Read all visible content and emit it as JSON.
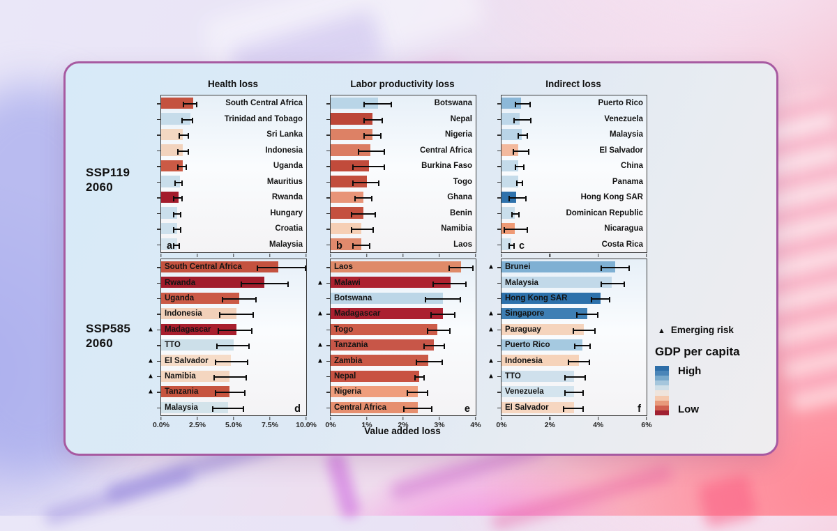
{
  "figure": {
    "rows": [
      {
        "scenario": "SSP119",
        "year": "2060"
      },
      {
        "scenario": "SSP585",
        "year": "2060"
      }
    ],
    "xlabel": "Value added loss",
    "legend": {
      "emerging_risk_marker": "▲",
      "emerging_risk_label": "Emerging risk",
      "gdp_title": "GDP per capita",
      "high_label": "High",
      "low_label": "Low",
      "colorbar_colors": [
        "#2d6ea8",
        "#4a85b8",
        "#78a9cc",
        "#a5c6dc",
        "#cfdfe8",
        "#efe4dc",
        "#f5c9ae",
        "#e89a7b",
        "#d05f4e",
        "#a02031"
      ]
    }
  },
  "chart_data": [
    {
      "id": "a",
      "type": "bar",
      "title": "Health loss",
      "measure": "Health loss",
      "scenario": "SSP119 2060",
      "unit": "%",
      "xmax": 10,
      "label_side": "right",
      "letter": "a",
      "letter_side": "left",
      "ticks": [
        {
          "value": 0,
          "label": ""
        },
        {
          "value": 2.5,
          "label": ""
        },
        {
          "value": 5,
          "label": ""
        },
        {
          "value": 7.5,
          "label": ""
        },
        {
          "value": 10,
          "label": ""
        }
      ],
      "bars": [
        {
          "label": "South Central Africa",
          "value": 2.2,
          "err": [
            1.5,
            2.5
          ],
          "color": "#c4523f",
          "emerging_risk": false
        },
        {
          "label": "Trinidad and Tobago",
          "value": 2.0,
          "err": [
            1.4,
            2.2
          ],
          "color": "#c6dcea",
          "emerging_risk": false
        },
        {
          "label": "Sri Lanka",
          "value": 1.5,
          "err": [
            1.2,
            1.9
          ],
          "color": "#f3d8c2",
          "emerging_risk": false
        },
        {
          "label": "Indonesia",
          "value": 1.5,
          "err": [
            1.1,
            1.9
          ],
          "color": "#f2d3bd",
          "emerging_risk": false
        },
        {
          "label": "Uganda",
          "value": 1.5,
          "err": [
            1.1,
            1.8
          ],
          "color": "#cb5a45",
          "emerging_risk": false
        },
        {
          "label": "Mauritius",
          "value": 1.3,
          "err": [
            0.9,
            1.5
          ],
          "color": "#c9deeb",
          "emerging_risk": false
        },
        {
          "label": "Rwanda",
          "value": 1.2,
          "err": [
            0.8,
            1.5
          ],
          "color": "#a31c2c",
          "emerging_risk": false
        },
        {
          "label": "Hungary",
          "value": 1.1,
          "err": [
            0.8,
            1.4
          ],
          "color": "#cadfec",
          "emerging_risk": false
        },
        {
          "label": "Croatia",
          "value": 1.1,
          "err": [
            0.8,
            1.4
          ],
          "color": "#cde0ec",
          "emerging_risk": false
        },
        {
          "label": "Malaysia",
          "value": 1.1,
          "err": [
            0.8,
            1.3
          ],
          "color": "#d4e4ee",
          "emerging_risk": false
        }
      ]
    },
    {
      "id": "b",
      "type": "bar",
      "title": "Labor productivity loss",
      "measure": "Labor productivity loss",
      "scenario": "SSP119 2060",
      "unit": "%",
      "xmax": 4,
      "label_side": "right",
      "letter": "b",
      "letter_side": "left",
      "ticks": [
        {
          "value": 0,
          "label": ""
        },
        {
          "value": 1,
          "label": ""
        },
        {
          "value": 2,
          "label": ""
        },
        {
          "value": 3,
          "label": ""
        },
        {
          "value": 4,
          "label": ""
        }
      ],
      "bars": [
        {
          "label": "Botswana",
          "value": 1.3,
          "err": [
            0.9,
            1.7
          ],
          "color": "#b9d5e7",
          "emerging_risk": false
        },
        {
          "label": "Nepal",
          "value": 1.15,
          "err": [
            0.9,
            1.45
          ],
          "color": "#bc4638",
          "emerging_risk": false
        },
        {
          "label": "Nigeria",
          "value": 1.15,
          "err": [
            0.9,
            1.4
          ],
          "color": "#dd8165",
          "emerging_risk": false
        },
        {
          "label": "Central Africa",
          "value": 1.1,
          "err": [
            0.75,
            1.5
          ],
          "color": "#db7c62",
          "emerging_risk": false
        },
        {
          "label": "Burkina Faso",
          "value": 1.05,
          "err": [
            0.6,
            1.5
          ],
          "color": "#c14b3b",
          "emerging_risk": false
        },
        {
          "label": "Togo",
          "value": 1.0,
          "err": [
            0.6,
            1.35
          ],
          "color": "#c24e3d",
          "emerging_risk": false
        },
        {
          "label": "Ghana",
          "value": 0.9,
          "err": [
            0.65,
            1.15
          ],
          "color": "#e89478",
          "emerging_risk": false
        },
        {
          "label": "Benin",
          "value": 0.9,
          "err": [
            0.55,
            1.25
          ],
          "color": "#c4503f",
          "emerging_risk": false
        },
        {
          "label": "Namibia",
          "value": 0.85,
          "err": [
            0.55,
            1.2
          ],
          "color": "#f6cfb5",
          "emerging_risk": false
        },
        {
          "label": "Laos",
          "value": 0.85,
          "err": [
            0.6,
            1.1
          ],
          "color": "#e08a6d",
          "emerging_risk": false
        }
      ]
    },
    {
      "id": "c",
      "type": "bar",
      "title": "Indirect loss",
      "measure": "Indirect loss",
      "scenario": "SSP119 2060",
      "unit": "%",
      "xmax": 6,
      "label_side": "right",
      "letter": "c",
      "letter_side": "left",
      "ticks": [
        {
          "value": 0,
          "label": ""
        },
        {
          "value": 2,
          "label": ""
        },
        {
          "value": 4,
          "label": ""
        },
        {
          "value": 6,
          "label": ""
        }
      ],
      "bars": [
        {
          "label": "Puerto Rico",
          "value": 0.8,
          "err": [
            0.55,
            1.2
          ],
          "color": "#8cb8d8",
          "emerging_risk": false
        },
        {
          "label": "Venezuela",
          "value": 0.75,
          "err": [
            0.5,
            1.25
          ],
          "color": "#bdd7e9",
          "emerging_risk": false
        },
        {
          "label": "Malaysia",
          "value": 0.85,
          "err": [
            0.65,
            1.1
          ],
          "color": "#b9d4e7",
          "emerging_risk": false
        },
        {
          "label": "El Salvador",
          "value": 0.7,
          "err": [
            0.45,
            1.15
          ],
          "color": "#f3b99d",
          "emerging_risk": false
        },
        {
          "label": "China",
          "value": 0.7,
          "err": [
            0.55,
            0.95
          ],
          "color": "#c3dae9",
          "emerging_risk": false
        },
        {
          "label": "Panama",
          "value": 0.7,
          "err": [
            0.6,
            0.9
          ],
          "color": "#c6dcea",
          "emerging_risk": false
        },
        {
          "label": "Hong Kong SAR",
          "value": 0.6,
          "err": [
            0.3,
            1.05
          ],
          "color": "#2f72ac",
          "emerging_risk": false
        },
        {
          "label": "Dominican Republic",
          "value": 0.55,
          "err": [
            0.4,
            0.75
          ],
          "color": "#c9deeb",
          "emerging_risk": false
        },
        {
          "label": "Nicaragua",
          "value": 0.55,
          "err": [
            0.1,
            1.1
          ],
          "color": "#ef9a75",
          "emerging_risk": false
        },
        {
          "label": "Costa Rica",
          "value": 0.4,
          "err": [
            0.3,
            0.55
          ],
          "color": "#cfe1ec",
          "emerging_risk": false
        }
      ]
    },
    {
      "id": "d",
      "type": "bar",
      "measure": "Health loss",
      "scenario": "SSP585 2060",
      "unit": "%",
      "xmax": 10,
      "label_side": "left",
      "letter": "d",
      "letter_side": "right",
      "ticks": [
        {
          "value": 0,
          "label": "0.0%"
        },
        {
          "value": 2.5,
          "label": "2.5%"
        },
        {
          "value": 5,
          "label": "5.0%"
        },
        {
          "value": 7.5,
          "label": "7.5%"
        },
        {
          "value": 10,
          "label": "10.0%"
        }
      ],
      "bars": [
        {
          "label": "South Central Africa",
          "value": 8.1,
          "err": [
            6.6,
            10.0
          ],
          "color": "#c4523f",
          "emerging_risk": false
        },
        {
          "label": "Rwanda",
          "value": 7.1,
          "err": [
            5.5,
            8.8
          ],
          "color": "#a21c2b",
          "emerging_risk": false
        },
        {
          "label": "Uganda",
          "value": 5.4,
          "err": [
            4.2,
            6.6
          ],
          "color": "#cb5a46",
          "emerging_risk": false
        },
        {
          "label": "Indonesia",
          "value": 5.2,
          "err": [
            4.0,
            6.4
          ],
          "color": "#f2d0b9",
          "emerging_risk": false
        },
        {
          "label": "Madagascar",
          "value": 5.2,
          "err": [
            3.9,
            6.3
          ],
          "color": "#a81e2d",
          "emerging_risk": true
        },
        {
          "label": "TTO",
          "value": 5.0,
          "err": [
            3.8,
            6.1
          ],
          "color": "#ccdfe9",
          "emerging_risk": false
        },
        {
          "label": "El Salvador",
          "value": 4.8,
          "err": [
            3.7,
            6.0
          ],
          "color": "#f6dcc8",
          "emerging_risk": true
        },
        {
          "label": "Namibia",
          "value": 4.7,
          "err": [
            3.6,
            5.9
          ],
          "color": "#f4d6c0",
          "emerging_risk": true
        },
        {
          "label": "Tanzania",
          "value": 4.7,
          "err": [
            3.7,
            5.8
          ],
          "color": "#c6543f",
          "emerging_risk": true
        },
        {
          "label": "Malaysia",
          "value": 4.6,
          "err": [
            3.5,
            5.7
          ],
          "color": "#d3e3ea",
          "emerging_risk": false
        }
      ]
    },
    {
      "id": "e",
      "type": "bar",
      "measure": "Labor productivity loss",
      "scenario": "SSP585 2060",
      "unit": "%",
      "xmax": 4,
      "label_side": "left",
      "letter": "e",
      "letter_side": "right",
      "ticks": [
        {
          "value": 0,
          "label": "0%"
        },
        {
          "value": 1,
          "label": "1%"
        },
        {
          "value": 2,
          "label": "2%"
        },
        {
          "value": 3,
          "label": "3%"
        },
        {
          "value": 4,
          "label": "4%"
        }
      ],
      "bars": [
        {
          "label": "Laos",
          "value": 3.6,
          "err": [
            3.25,
            3.95
          ],
          "color": "#df8a69",
          "emerging_risk": false
        },
        {
          "label": "Malawi",
          "value": 3.3,
          "err": [
            2.8,
            3.75
          ],
          "color": "#ad2230",
          "emerging_risk": true
        },
        {
          "label": "Botswana",
          "value": 3.1,
          "err": [
            2.6,
            3.6
          ],
          "color": "#bcd6e7",
          "emerging_risk": false
        },
        {
          "label": "Madagascar",
          "value": 3.1,
          "err": [
            2.75,
            3.45
          ],
          "color": "#ab2030",
          "emerging_risk": true
        },
        {
          "label": "Togo",
          "value": 2.95,
          "err": [
            2.65,
            3.3
          ],
          "color": "#cd5c49",
          "emerging_risk": false
        },
        {
          "label": "Tanzania",
          "value": 2.85,
          "err": [
            2.55,
            3.15
          ],
          "color": "#c85648",
          "emerging_risk": true
        },
        {
          "label": "Zambia",
          "value": 2.7,
          "err": [
            2.35,
            3.1
          ],
          "color": "#ca5a47",
          "emerging_risk": true
        },
        {
          "label": "Nepal",
          "value": 2.45,
          "err": [
            2.3,
            2.6
          ],
          "color": "#c85242",
          "emerging_risk": false
        },
        {
          "label": "Nigeria",
          "value": 2.4,
          "err": [
            2.1,
            2.7
          ],
          "color": "#ef9d7c",
          "emerging_risk": false
        },
        {
          "label": "Central Africa",
          "value": 2.4,
          "err": [
            2.0,
            2.8
          ],
          "color": "#e68f6f",
          "emerging_risk": false
        }
      ]
    },
    {
      "id": "f",
      "type": "bar",
      "measure": "Indirect loss",
      "scenario": "SSP585 2060",
      "unit": "%",
      "xmax": 6,
      "label_side": "left",
      "letter": "f",
      "letter_side": "right",
      "ticks": [
        {
          "value": 0,
          "label": "0%"
        },
        {
          "value": 2,
          "label": "2%"
        },
        {
          "value": 4,
          "label": "4%"
        },
        {
          "value": 6,
          "label": "6%"
        }
      ],
      "bars": [
        {
          "label": "Brunei",
          "value": 4.7,
          "err": [
            4.1,
            5.3
          ],
          "color": "#7fb0d3",
          "emerging_risk": true
        },
        {
          "label": "Malaysia",
          "value": 4.55,
          "err": [
            4.1,
            5.1
          ],
          "color": "#c2d9e9",
          "emerging_risk": false
        },
        {
          "label": "Hong Kong SAR",
          "value": 4.1,
          "err": [
            3.7,
            4.5
          ],
          "color": "#2d71ab",
          "emerging_risk": false
        },
        {
          "label": "Singapore",
          "value": 3.55,
          "err": [
            3.1,
            4.0
          ],
          "color": "#3e7fb4",
          "emerging_risk": true
        },
        {
          "label": "Paraguay",
          "value": 3.4,
          "err": [
            2.95,
            3.9
          ],
          "color": "#f5d4bd",
          "emerging_risk": true
        },
        {
          "label": "Puerto Rico",
          "value": 3.35,
          "err": [
            3.0,
            3.7
          ],
          "color": "#a5c9e0",
          "emerging_risk": false
        },
        {
          "label": "Indonesia",
          "value": 3.2,
          "err": [
            2.75,
            3.65
          ],
          "color": "#f6d3ba",
          "emerging_risk": true
        },
        {
          "label": "TTO",
          "value": 3.0,
          "err": [
            2.6,
            3.5
          ],
          "color": "#cfe0ec",
          "emerging_risk": true
        },
        {
          "label": "Venezuela",
          "value": 3.0,
          "err": [
            2.6,
            3.4
          ],
          "color": "#d4e4ee",
          "emerging_risk": false
        },
        {
          "label": "El Salvador",
          "value": 3.0,
          "err": [
            2.55,
            3.4
          ],
          "color": "#f6d6c0",
          "emerging_risk": false
        }
      ]
    }
  ]
}
